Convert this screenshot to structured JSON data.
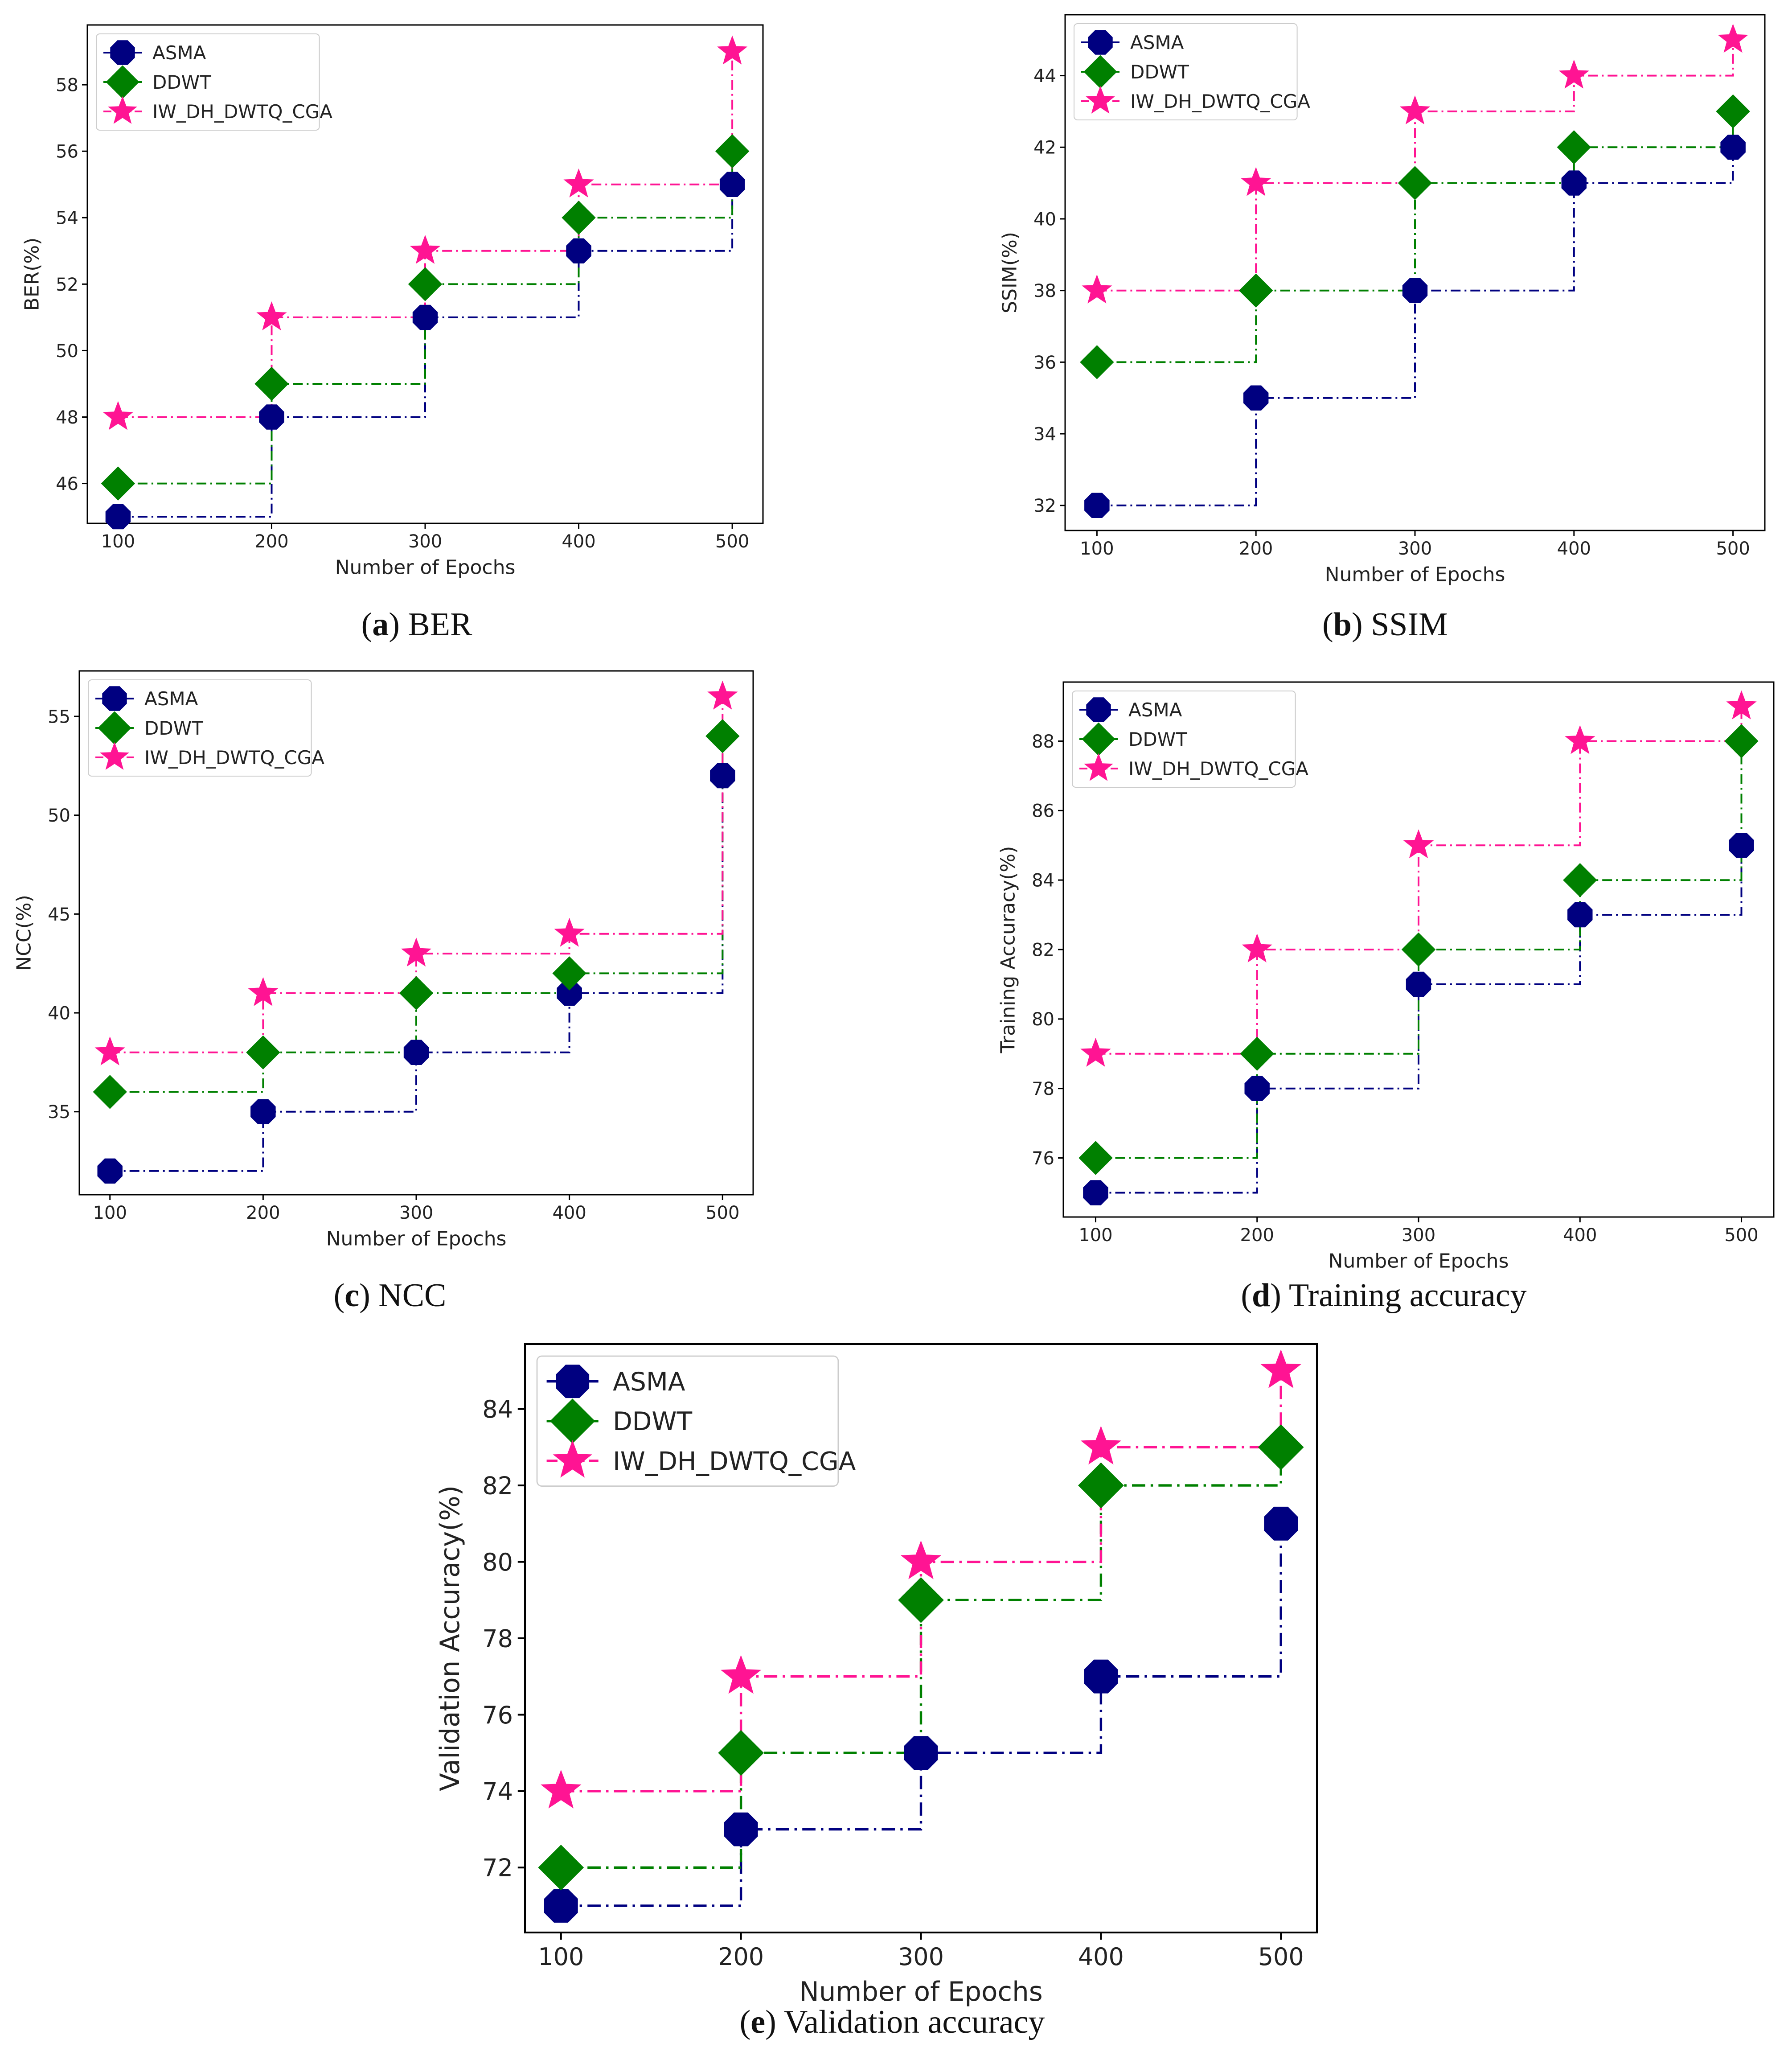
{
  "x_label": "Number of Epochs",
  "colors": {
    "ASMA": "#000080",
    "DDWT": "#008000",
    "IW_DH_DWTQ_CGA": "#ff1493"
  },
  "chart_data": [
    {
      "id": "a",
      "type": "line",
      "step": "post",
      "caption_letter": "a",
      "caption_text": " BER",
      "ylabel": "BER(%)",
      "xlabel": "Number of Epochs",
      "x": [
        100,
        200,
        300,
        400,
        500
      ],
      "xlim": [
        80,
        520
      ],
      "ylim": [
        44.8,
        59.8
      ],
      "yticks": [
        46,
        48,
        50,
        52,
        54,
        56,
        58
      ],
      "legend": "top-left",
      "series": [
        {
          "name": "ASMA",
          "values": [
            45,
            48,
            51,
            53,
            55
          ]
        },
        {
          "name": "DDWT",
          "values": [
            46,
            49,
            52,
            54,
            56
          ]
        },
        {
          "name": "IW_DH_DWTQ_CGA",
          "values": [
            48,
            51,
            53,
            55,
            59
          ]
        }
      ]
    },
    {
      "id": "b",
      "type": "line",
      "step": "post",
      "caption_letter": "b",
      "caption_text": " SSIM",
      "ylabel": "SSIM(%)",
      "xlabel": "Number of Epochs",
      "x": [
        100,
        200,
        300,
        400,
        500
      ],
      "xlim": [
        80,
        520
      ],
      "ylim": [
        31.3,
        45.7
      ],
      "yticks": [
        32,
        34,
        36,
        38,
        40,
        42,
        44
      ],
      "legend": "top-left",
      "series": [
        {
          "name": "ASMA",
          "values": [
            32,
            35,
            38,
            41,
            42
          ]
        },
        {
          "name": "DDWT",
          "values": [
            36,
            38,
            41,
            42,
            43
          ]
        },
        {
          "name": "IW_DH_DWTQ_CGA",
          "values": [
            38,
            41,
            43,
            44,
            45
          ]
        }
      ]
    },
    {
      "id": "c",
      "type": "line",
      "step": "post",
      "caption_letter": "c",
      "caption_text": " NCC",
      "ylabel": "NCC(%)",
      "xlabel": "Number of Epochs",
      "x": [
        100,
        200,
        300,
        400,
        500
      ],
      "xlim": [
        80,
        520
      ],
      "ylim": [
        30.8,
        57.3
      ],
      "yticks": [
        35,
        40,
        45,
        50,
        55
      ],
      "legend": "top-left",
      "series": [
        {
          "name": "ASMA",
          "values": [
            32,
            35,
            38,
            41,
            52
          ]
        },
        {
          "name": "DDWT",
          "values": [
            36,
            38,
            41,
            42,
            54
          ]
        },
        {
          "name": "IW_DH_DWTQ_CGA",
          "values": [
            38,
            41,
            43,
            44,
            56
          ]
        }
      ]
    },
    {
      "id": "d",
      "type": "line",
      "step": "post",
      "caption_letter": "d",
      "caption_text": " Training accuracy",
      "ylabel": "Training Accuracy(%)",
      "xlabel": "Number of Epochs",
      "x": [
        100,
        200,
        300,
        400,
        500
      ],
      "xlim": [
        80,
        520
      ],
      "ylim": [
        74.3,
        89.7
      ],
      "yticks": [
        76,
        78,
        80,
        82,
        84,
        86,
        88
      ],
      "legend": "top-left",
      "series": [
        {
          "name": "ASMA",
          "values": [
            75,
            78,
            81,
            83,
            85
          ]
        },
        {
          "name": "DDWT",
          "values": [
            76,
            79,
            82,
            84,
            88
          ]
        },
        {
          "name": "IW_DH_DWTQ_CGA",
          "values": [
            79,
            82,
            85,
            88,
            89
          ]
        }
      ]
    },
    {
      "id": "e",
      "type": "line",
      "step": "post",
      "caption_letter": "e",
      "caption_text": " Validation accuracy",
      "ylabel": "Validation Accuracy(%)",
      "xlabel": "Number of Epochs",
      "x": [
        100,
        200,
        300,
        400,
        500
      ],
      "xlim": [
        80,
        520
      ],
      "ylim": [
        70.3,
        85.7
      ],
      "yticks": [
        72,
        74,
        76,
        78,
        80,
        82,
        84
      ],
      "legend": "top-left",
      "series": [
        {
          "name": "ASMA",
          "values": [
            71,
            73,
            75,
            77,
            81
          ]
        },
        {
          "name": "DDWT",
          "values": [
            72,
            75,
            79,
            82,
            83
          ]
        },
        {
          "name": "IW_DH_DWTQ_CGA",
          "values": [
            74,
            77,
            80,
            83,
            85
          ]
        }
      ]
    }
  ]
}
